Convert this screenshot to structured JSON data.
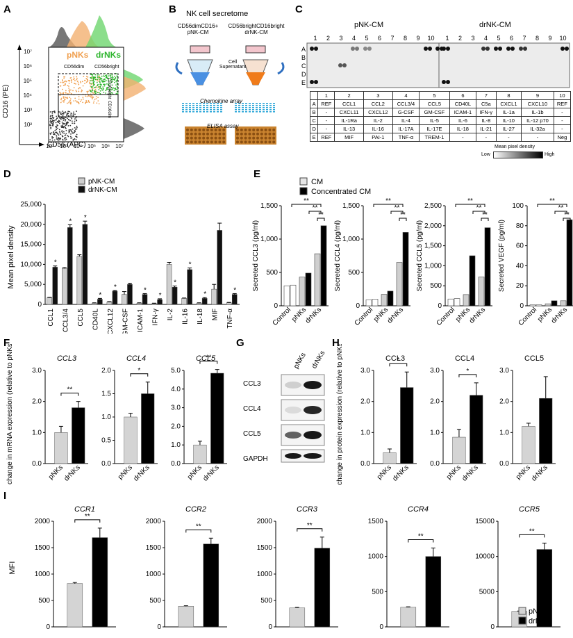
{
  "panelA": {
    "letter": "A",
    "legend_pnk": "pNKs",
    "legend_drnk": "drNKs",
    "gate_dim": "CD56dim",
    "gate_bright": "CD56bright",
    "gate_cd16_bright": "CD16bright",
    "gate_cd16_dim": "CD16dim",
    "ylabel": "CD16 (PE)",
    "xlabel": "CD56 (APC)",
    "yticks": [
      "10²",
      "10³",
      "10⁴",
      "10⁵",
      "10⁶",
      "10⁷"
    ],
    "xticks": [
      "10²",
      "10³",
      "10⁴",
      "10⁵",
      "10⁶",
      "10⁷"
    ],
    "colors": {
      "pnk": "#f0a050",
      "drnk": "#2db52d",
      "neg": "#444444"
    }
  },
  "panelB": {
    "letter": "B",
    "title": "NK cell secretome",
    "left_label": "CD56dimCD16+ pNK-CM",
    "right_label": "CD56brightCD16bright drNK-CM",
    "cell_sup": "Cell Supernatant",
    "array": "Chemokine array",
    "elisa": "ELISA assay"
  },
  "panelC": {
    "letter": "C",
    "title_left": "pNK-CM",
    "title_right": "drNK-CM",
    "cols": [
      "1",
      "2",
      "3",
      "4",
      "5",
      "6",
      "7",
      "8",
      "9",
      "10"
    ],
    "rows": [
      "A",
      "B",
      "C",
      "D",
      "E"
    ],
    "table": [
      [
        "",
        "1",
        "2",
        "3",
        "4",
        "5",
        "6",
        "7",
        "8",
        "9",
        "10"
      ],
      [
        "A",
        "REF",
        "CCL1",
        "CCL2",
        "CCL3/4",
        "CCL5",
        "CD40L",
        "C5a",
        "CXCL1",
        "CXCL10",
        "REF"
      ],
      [
        "B",
        "-",
        "CXCL11",
        "CXCL12",
        "G-CSF",
        "GM-CSF",
        "ICAM-1",
        "IFN-γ",
        "IL-1a",
        "IL-1b",
        "-"
      ],
      [
        "C",
        "-",
        "IL-1Ra",
        "IL-2",
        "IL-4",
        "IL-5",
        "IL-6",
        "IL-8",
        "IL-10",
        "IL-12 p70",
        "-"
      ],
      [
        "D",
        "-",
        "IL-13",
        "IL-16",
        "IL-17A",
        "IL-17E",
        "IL-18",
        "IL-21",
        "IL-27",
        "IL-32a",
        "-"
      ],
      [
        "E",
        "REF",
        "MIF",
        "PAI-1",
        "TNF-α",
        "TREM-1",
        "-",
        "-",
        "-",
        "-",
        "Neg"
      ]
    ],
    "scale_title": "Mean pixel density",
    "scale_low": "Low",
    "scale_high": "High"
  },
  "panelD": {
    "letter": "D",
    "chart_data": {
      "type": "bar",
      "ylabel": "Mean pixel density",
      "ylim": [
        0,
        25000
      ],
      "yticks": [
        "0",
        "5,000",
        "10,000",
        "15,000",
        "20,000",
        "25,000"
      ],
      "categories": [
        "CCL1",
        "CCL3/4",
        "CCL5",
        "CD40L",
        "CXCL12",
        "GM-CSF",
        "ICAM-1",
        "IFN-γ",
        "IL-2",
        "IL-16",
        "IL-18",
        "MIF",
        "TNF-α"
      ],
      "series": [
        {
          "name": "pNK-CM",
          "color": "#cfcfcf",
          "values": [
            1700,
            9000,
            12000,
            300,
            600,
            2500,
            300,
            200,
            10000,
            1500,
            300,
            3800,
            400
          ],
          "err": [
            100,
            200,
            400,
            100,
            100,
            700,
            100,
            100,
            500,
            100,
            100,
            1200,
            100
          ]
        },
        {
          "name": "drNK-CM",
          "color": "#111111",
          "values": [
            9300,
            19200,
            20000,
            1300,
            3300,
            5000,
            2500,
            1200,
            4300,
            8700,
            1500,
            18500,
            2500
          ],
          "err": [
            300,
            700,
            800,
            200,
            200,
            300,
            200,
            200,
            300,
            400,
            200,
            1800,
            200
          ]
        }
      ],
      "stars": [
        "*",
        "*",
        "*",
        "*",
        "*",
        "",
        "*",
        "*",
        "*",
        "*",
        "*",
        "",
        "*"
      ]
    }
  },
  "panelE": {
    "letter": "E",
    "legend": [
      "CM",
      "Concentrated CM"
    ],
    "groups": [
      "Control",
      "pNKs",
      "drNKs"
    ],
    "chart_data": [
      {
        "type": "bar",
        "ylabel": "Secreted  CCL3 (pg/ml)",
        "ylim": [
          0,
          1500
        ],
        "yticks": [
          "0",
          "500",
          "1,000",
          "1,500"
        ],
        "cm": [
          300,
          430,
          780
        ],
        "conc": [
          310,
          490,
          1200
        ]
      },
      {
        "type": "bar",
        "ylabel": "Secreted CCL4 (pg/ml)",
        "ylim": [
          0,
          1500
        ],
        "yticks": [
          "0",
          "500",
          "1,000",
          "1,500"
        ],
        "cm": [
          90,
          170,
          650
        ],
        "conc": [
          100,
          220,
          1100
        ]
      },
      {
        "type": "bar",
        "ylabel": "Secreted CCL5 (pg/ml)",
        "ylim": [
          0,
          2500
        ],
        "yticks": [
          "0",
          "500",
          "1,000",
          "1,500",
          "2,000",
          "2,500"
        ],
        "cm": [
          170,
          280,
          720
        ],
        "conc": [
          180,
          1250,
          1950
        ]
      },
      {
        "type": "bar",
        "ylabel": "Secreted VEGF (pg/ml)",
        "ylim": [
          0,
          100
        ],
        "yticks": [
          "0",
          "20",
          "40",
          "60",
          "80",
          "100"
        ],
        "cm": [
          1,
          2,
          5
        ],
        "conc": [
          1,
          5,
          86
        ]
      }
    ]
  },
  "panelF": {
    "letter": "F",
    "ylabel": "Fold change in mRNA expression (relative to pNKs)",
    "groups": [
      "pNKs",
      "drNKs"
    ],
    "chart_data": [
      {
        "type": "bar",
        "title": "CCL3",
        "ylim": [
          0,
          3
        ],
        "yticks": [
          "0.0",
          "1.0",
          "2.0",
          "3.0"
        ],
        "values": [
          1.0,
          1.8
        ],
        "err": [
          0.2,
          0.2
        ],
        "sig": "**"
      },
      {
        "type": "bar",
        "title": "CCL4",
        "ylim": [
          0,
          2
        ],
        "yticks": [
          "0.0",
          "0.5",
          "1.0",
          "1.5",
          "2.0"
        ],
        "values": [
          1.0,
          1.5
        ],
        "err": [
          0.08,
          0.25
        ],
        "sig": "*"
      },
      {
        "type": "bar",
        "title": "CCL5",
        "ylim": [
          0,
          5
        ],
        "yticks": [
          "0.0",
          "1.0",
          "2.0",
          "3.0",
          "4.0",
          "5.0"
        ],
        "values": [
          1.0,
          4.85
        ],
        "err": [
          0.2,
          0.2
        ],
        "sig": "**"
      }
    ]
  },
  "panelG": {
    "letter": "G",
    "lanes": [
      "pNKs",
      "drNKs"
    ],
    "bands": [
      "CCL3",
      "CCL4",
      "CCL5",
      "GAPDH"
    ]
  },
  "panelH": {
    "letter": "H",
    "ylabel": "Fold change in protein expression (relative to pNKs)",
    "groups": [
      "pNKs",
      "drNKs"
    ],
    "chart_data": [
      {
        "type": "bar",
        "title": "CCL3",
        "ylim": [
          0,
          3
        ],
        "yticks": [
          "0.0",
          "1.0",
          "2.0",
          "3.0"
        ],
        "values": [
          0.35,
          2.45
        ],
        "err": [
          0.12,
          0.5
        ],
        "sig": "*"
      },
      {
        "type": "bar",
        "title": "CCL4",
        "ylim": [
          0,
          3
        ],
        "yticks": [
          "0.0",
          "1.0",
          "2.0",
          "3.0"
        ],
        "values": [
          0.85,
          2.2
        ],
        "err": [
          0.25,
          0.4
        ],
        "sig": "*"
      },
      {
        "type": "bar",
        "title": "CCL5",
        "ylim": [
          0,
          3
        ],
        "yticks": [
          "0.0",
          "1.0",
          "2.0",
          "3.0"
        ],
        "values": [
          1.2,
          2.1
        ],
        "err": [
          0.1,
          0.7
        ],
        "sig": ""
      }
    ]
  },
  "panelI": {
    "letter": "I",
    "ylabel": "MFI",
    "legend": [
      "pNKs",
      "drNKs"
    ],
    "chart_data": [
      {
        "type": "bar",
        "title": "CCR1",
        "ylim": [
          0,
          2000
        ],
        "yticks": [
          "0",
          "500",
          "1000",
          "1500",
          "2000"
        ],
        "values": [
          820,
          1690
        ],
        "err": [
          20,
          180
        ],
        "sig": "**"
      },
      {
        "type": "bar",
        "title": "CCR2",
        "ylim": [
          0,
          2000
        ],
        "yticks": [
          "0",
          "500",
          "1000",
          "1500",
          "2000"
        ],
        "values": [
          390,
          1570
        ],
        "err": [
          10,
          110
        ],
        "sig": "**"
      },
      {
        "type": "bar",
        "title": "CCR3",
        "ylim": [
          0,
          2000
        ],
        "yticks": [
          "0",
          "500",
          "1000",
          "1500",
          "2000"
        ],
        "values": [
          360,
          1490
        ],
        "err": [
          10,
          210
        ],
        "sig": "**"
      },
      {
        "type": "bar",
        "title": "CCR4",
        "ylim": [
          0,
          1500
        ],
        "yticks": [
          "0",
          "500",
          "1000",
          "1500"
        ],
        "values": [
          280,
          1000
        ],
        "err": [
          5,
          120
        ],
        "sig": "**"
      },
      {
        "type": "bar",
        "title": "CCR5",
        "ylim": [
          0,
          15000
        ],
        "yticks": [
          "0",
          "5000",
          "10000",
          "15000"
        ],
        "values": [
          2200,
          11000
        ],
        "err": [
          50,
          900
        ],
        "sig": "**"
      }
    ]
  }
}
